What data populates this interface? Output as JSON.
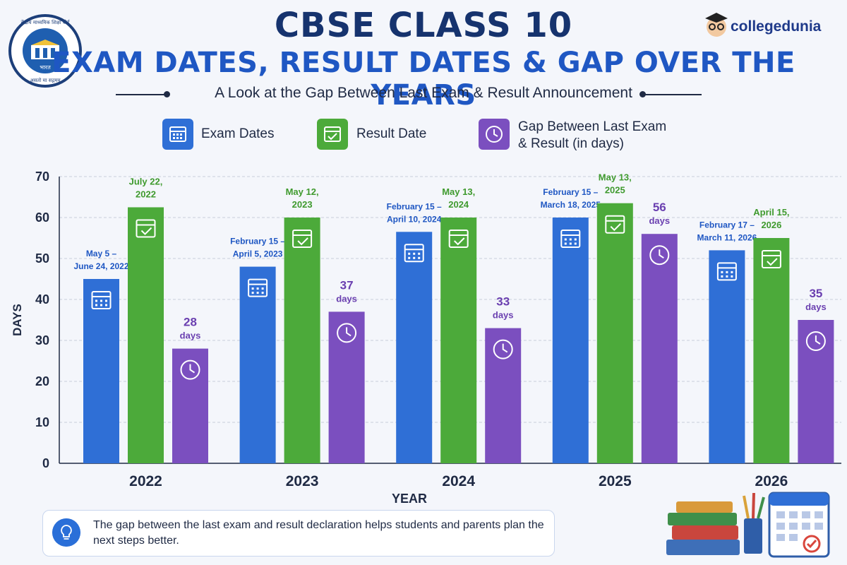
{
  "header": {
    "title_line1": "CBSE CLASS 10",
    "title_line2": "EXAM DATES, RESULT DATES & GAP OVER THE YEARS",
    "subtitle": "A Look at the Gap Between Last Exam & Result Announcement",
    "brand": "collegedunia",
    "emblem_text_top": "केंद्रीय माध्यमिक शिक्षा बोर्ड",
    "emblem_text_mid": "भारत",
    "emblem_text_bottom": "असतो मा सद्गमय"
  },
  "legend": [
    {
      "label": "Exam Dates",
      "color": "#2f6fd6",
      "icon": "calendar-icon"
    },
    {
      "label": "Result Date",
      "color": "#4caa3a",
      "icon": "calendar-check-icon"
    },
    {
      "label_line1": "Gap Between Last Exam",
      "label_line2": "& Result (in days)",
      "color": "#7b4fbf",
      "icon": "clock-icon"
    }
  ],
  "chart_data": {
    "type": "bar",
    "xlabel": "YEAR",
    "ylabel": "DAYS",
    "ylim": [
      0,
      70
    ],
    "yticks": [
      0,
      10,
      20,
      30,
      40,
      50,
      60,
      70
    ],
    "categories": [
      "2022",
      "2023",
      "2024",
      "2025",
      "2026"
    ],
    "series": [
      {
        "name": "Exam Dates",
        "color": "#2f6fd6",
        "values": [
          45,
          48,
          56.5,
          60,
          52
        ],
        "labels": [
          [
            "May 5 –",
            "June 24, 2022"
          ],
          [
            "February 15 –",
            "April 5, 2023"
          ],
          [
            "February 15 –",
            "April 10, 2024"
          ],
          [
            "February 15 –",
            "March 18, 2025"
          ],
          [
            "February 17 –",
            "March 11, 2026"
          ]
        ]
      },
      {
        "name": "Result Date",
        "color": "#4caa3a",
        "values": [
          62.5,
          60,
          60,
          63.5,
          55
        ],
        "labels": [
          [
            "July 22,",
            "2022"
          ],
          [
            "May 12,",
            "2023"
          ],
          [
            "May 13,",
            "2024"
          ],
          [
            "May 13,",
            "2025"
          ],
          [
            "April 15,",
            "2026"
          ]
        ]
      },
      {
        "name": "Gap Between Last Exam & Result (in days)",
        "color": "#7b4fbf",
        "values": [
          28,
          37,
          33,
          56,
          35
        ],
        "labels": [
          [
            "28",
            "days"
          ],
          [
            "37",
            "days"
          ],
          [
            "33",
            "days"
          ],
          [
            "56",
            "days"
          ],
          [
            "35",
            "days"
          ]
        ]
      }
    ]
  },
  "footer": {
    "tip": "The gap between the last exam and result declaration helps students and parents plan the next steps better."
  }
}
